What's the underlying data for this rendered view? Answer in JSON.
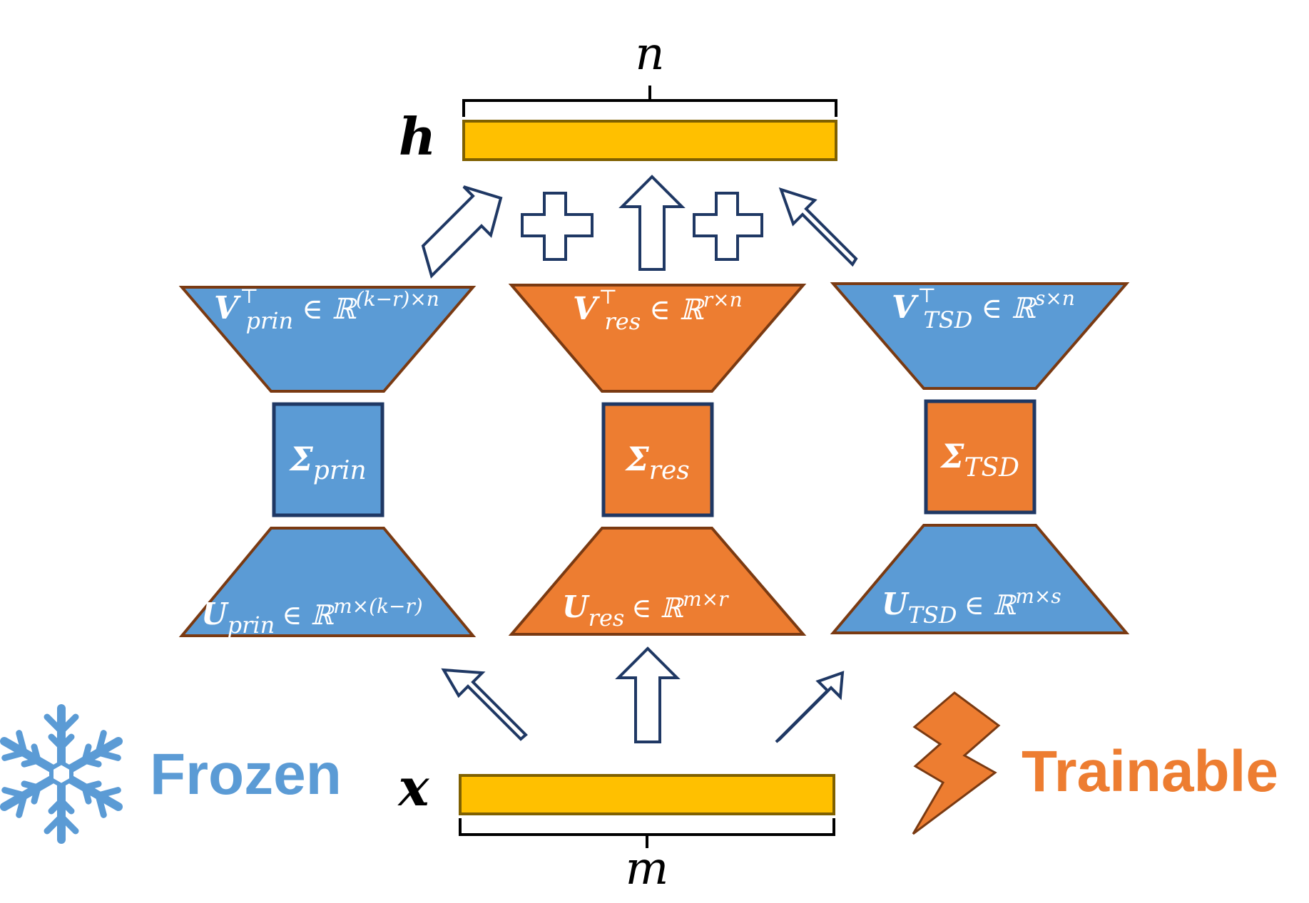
{
  "colors": {
    "frozen": "#5B9BD5",
    "trainable": "#ED7D31",
    "vector_fill": "#FFC000",
    "shape_stroke": "#7A3A12",
    "box_stroke": "#1F3864",
    "arrow_stroke": "#1F3864",
    "text_dark": "#000000",
    "text_light": "#FFFFFF"
  },
  "top": {
    "dim_label": "n",
    "vector_label": "h"
  },
  "bottom": {
    "dim_label": "m",
    "vector_label": "x"
  },
  "blocks": {
    "prin": {
      "v": {
        "base": "V",
        "sup": "⊤",
        "sub": "prin",
        "set": "∈ ℝ",
        "exp": "(k−r)×n"
      },
      "sigma": {
        "base": "Σ",
        "sub": "prin"
      },
      "u": {
        "base": "U",
        "sub": "prin",
        "set": "∈ ℝ",
        "exp": "m×(k−r)"
      }
    },
    "res": {
      "v": {
        "base": "V",
        "sup": "⊤",
        "sub": "res",
        "set": "∈ ℝ",
        "exp": "r×n"
      },
      "sigma": {
        "base": "Σ",
        "sub": "res"
      },
      "u": {
        "base": "U",
        "sub": "res",
        "set": "∈ ℝ",
        "exp": "m×r"
      }
    },
    "tsd": {
      "v": {
        "base": "V",
        "sup": "⊤",
        "sub": "TSD",
        "set": "∈ ℝ",
        "exp": "s×n"
      },
      "sigma": {
        "base": "Σ",
        "sub": "TSD"
      },
      "u": {
        "base": "U",
        "sub": "TSD",
        "set": "∈ ℝ",
        "exp": "m×s"
      }
    }
  },
  "legend": {
    "frozen_label": "Frozen",
    "frozen_icon": "snowflake-icon",
    "trainable_label": "Trainable",
    "trainable_icon": "lightning-bolt-icon"
  }
}
